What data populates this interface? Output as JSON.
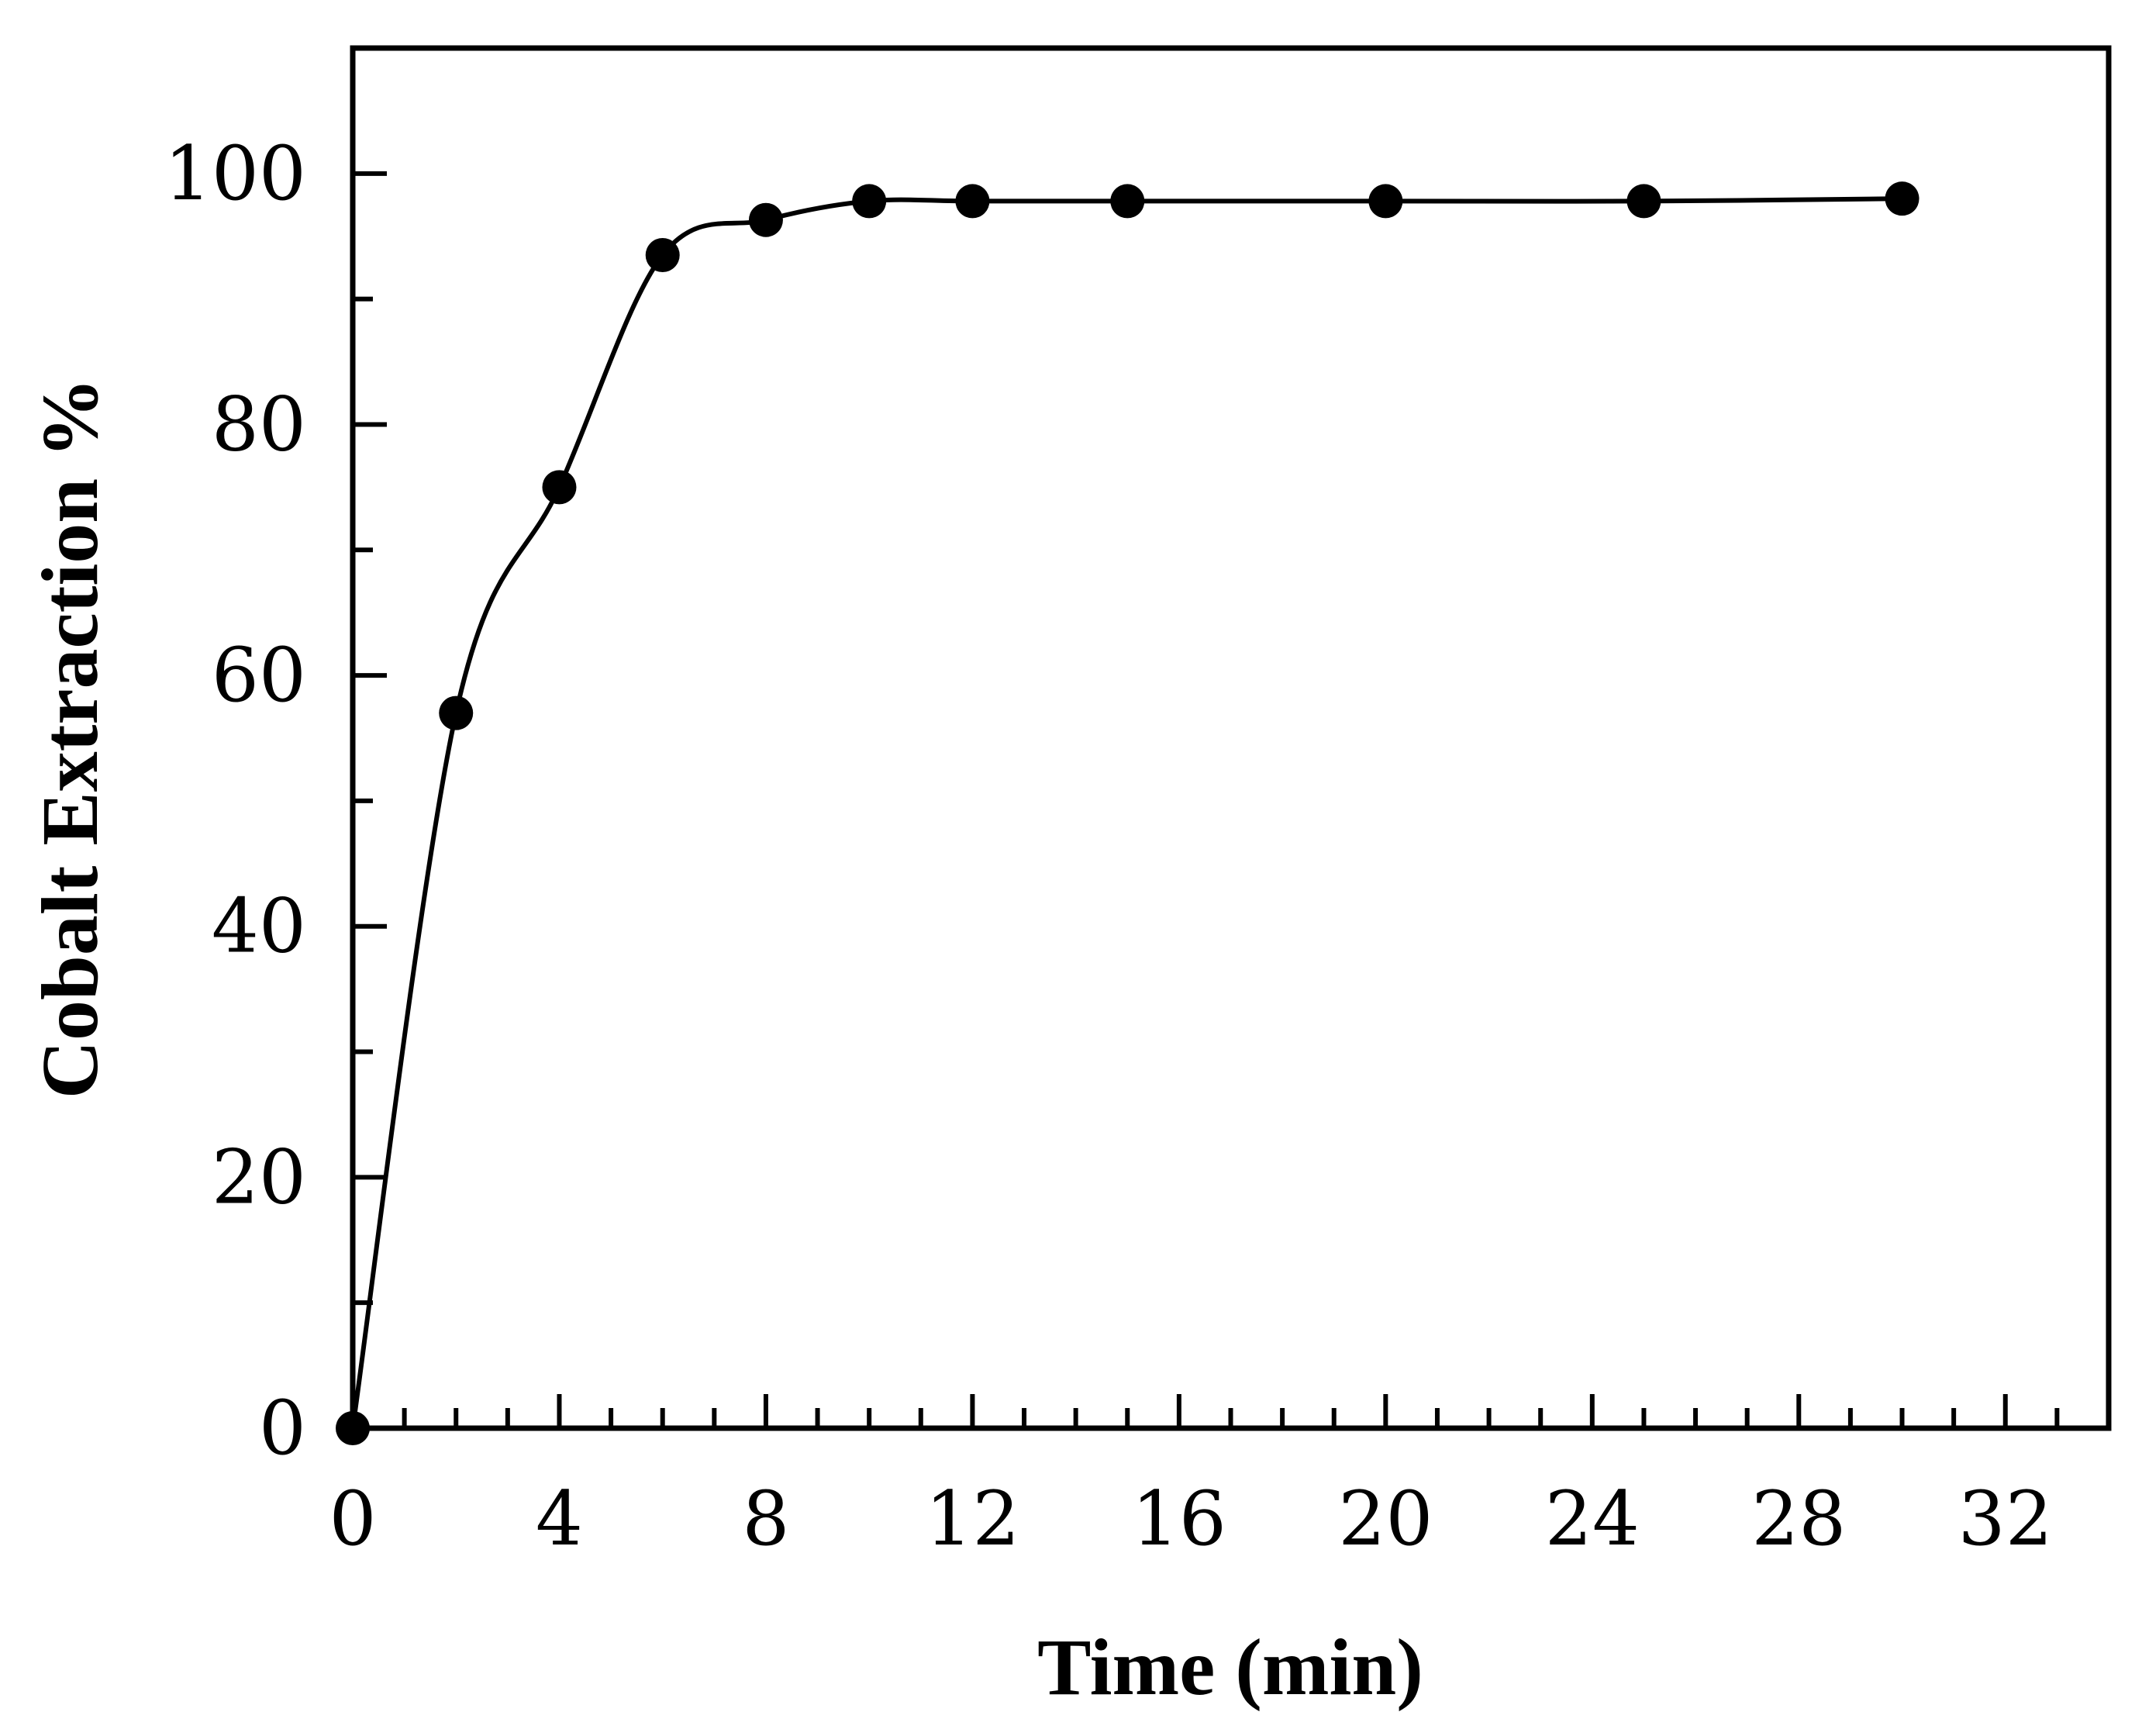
{
  "chart_data": {
    "type": "line",
    "title": "",
    "xlabel": "Time (min)",
    "ylabel": "Cobalt Extraction %",
    "xlim": [
      0,
      34
    ],
    "ylim": [
      0,
      110
    ],
    "xticks": [
      0,
      4,
      8,
      12,
      16,
      20,
      24,
      28,
      32
    ],
    "xtick_labels": [
      "0",
      "4",
      "8",
      "12",
      "16",
      "20",
      "24",
      "28",
      "32"
    ],
    "x_minor_step": 1,
    "yticks": [
      0,
      20,
      40,
      60,
      80,
      100
    ],
    "ytick_labels": [
      "0",
      "20",
      "40",
      "60",
      "80",
      "100"
    ],
    "y_minor_step": 10,
    "grid": false,
    "legend": "none",
    "series": [
      {
        "name": "Cobalt Extraction",
        "marker": "filled-circle",
        "color": "#000000",
        "x": [
          0,
          2,
          4,
          6,
          8,
          10,
          12,
          15,
          20,
          25,
          30
        ],
        "y": [
          0,
          57,
          75,
          93.5,
          96.3,
          97.8,
          97.8,
          97.8,
          97.8,
          97.8,
          98
        ]
      }
    ]
  }
}
